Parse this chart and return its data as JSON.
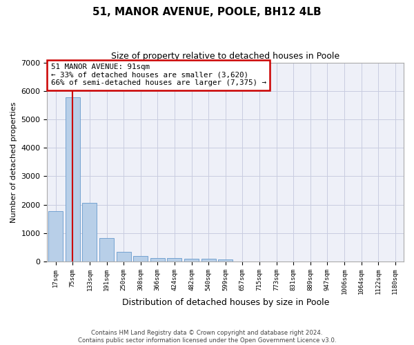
{
  "title": "51, MANOR AVENUE, POOLE, BH12 4LB",
  "subtitle": "Size of property relative to detached houses in Poole",
  "xlabel": "Distribution of detached houses by size in Poole",
  "ylabel": "Number of detached properties",
  "bar_color": "#b8cfe8",
  "bar_edge_color": "#6699cc",
  "bg_color": "#eef0f8",
  "grid_color": "#c8cce0",
  "categories": [
    "17sqm",
    "75sqm",
    "133sqm",
    "191sqm",
    "250sqm",
    "308sqm",
    "366sqm",
    "424sqm",
    "482sqm",
    "540sqm",
    "599sqm",
    "657sqm",
    "715sqm",
    "773sqm",
    "831sqm",
    "889sqm",
    "947sqm",
    "1006sqm",
    "1064sqm",
    "1122sqm",
    "1180sqm"
  ],
  "values": [
    1780,
    5780,
    2060,
    820,
    340,
    185,
    135,
    115,
    105,
    90,
    80,
    0,
    0,
    0,
    0,
    0,
    0,
    0,
    0,
    0,
    0
  ],
  "ylim": [
    0,
    7000
  ],
  "yticks": [
    0,
    1000,
    2000,
    3000,
    4000,
    5000,
    6000,
    7000
  ],
  "vline_bar_index": 1,
  "property_label": "51 MANOR AVENUE: 91sqm",
  "annotation_line1": "← 33% of detached houses are smaller (3,620)",
  "annotation_line2": "66% of semi-detached houses are larger (7,375) →",
  "annotation_box_color": "#ffffff",
  "annotation_box_edge": "#cc0000",
  "vline_color": "#cc0000",
  "footer1": "Contains HM Land Registry data © Crown copyright and database right 2024.",
  "footer2": "Contains public sector information licensed under the Open Government Licence v3.0."
}
